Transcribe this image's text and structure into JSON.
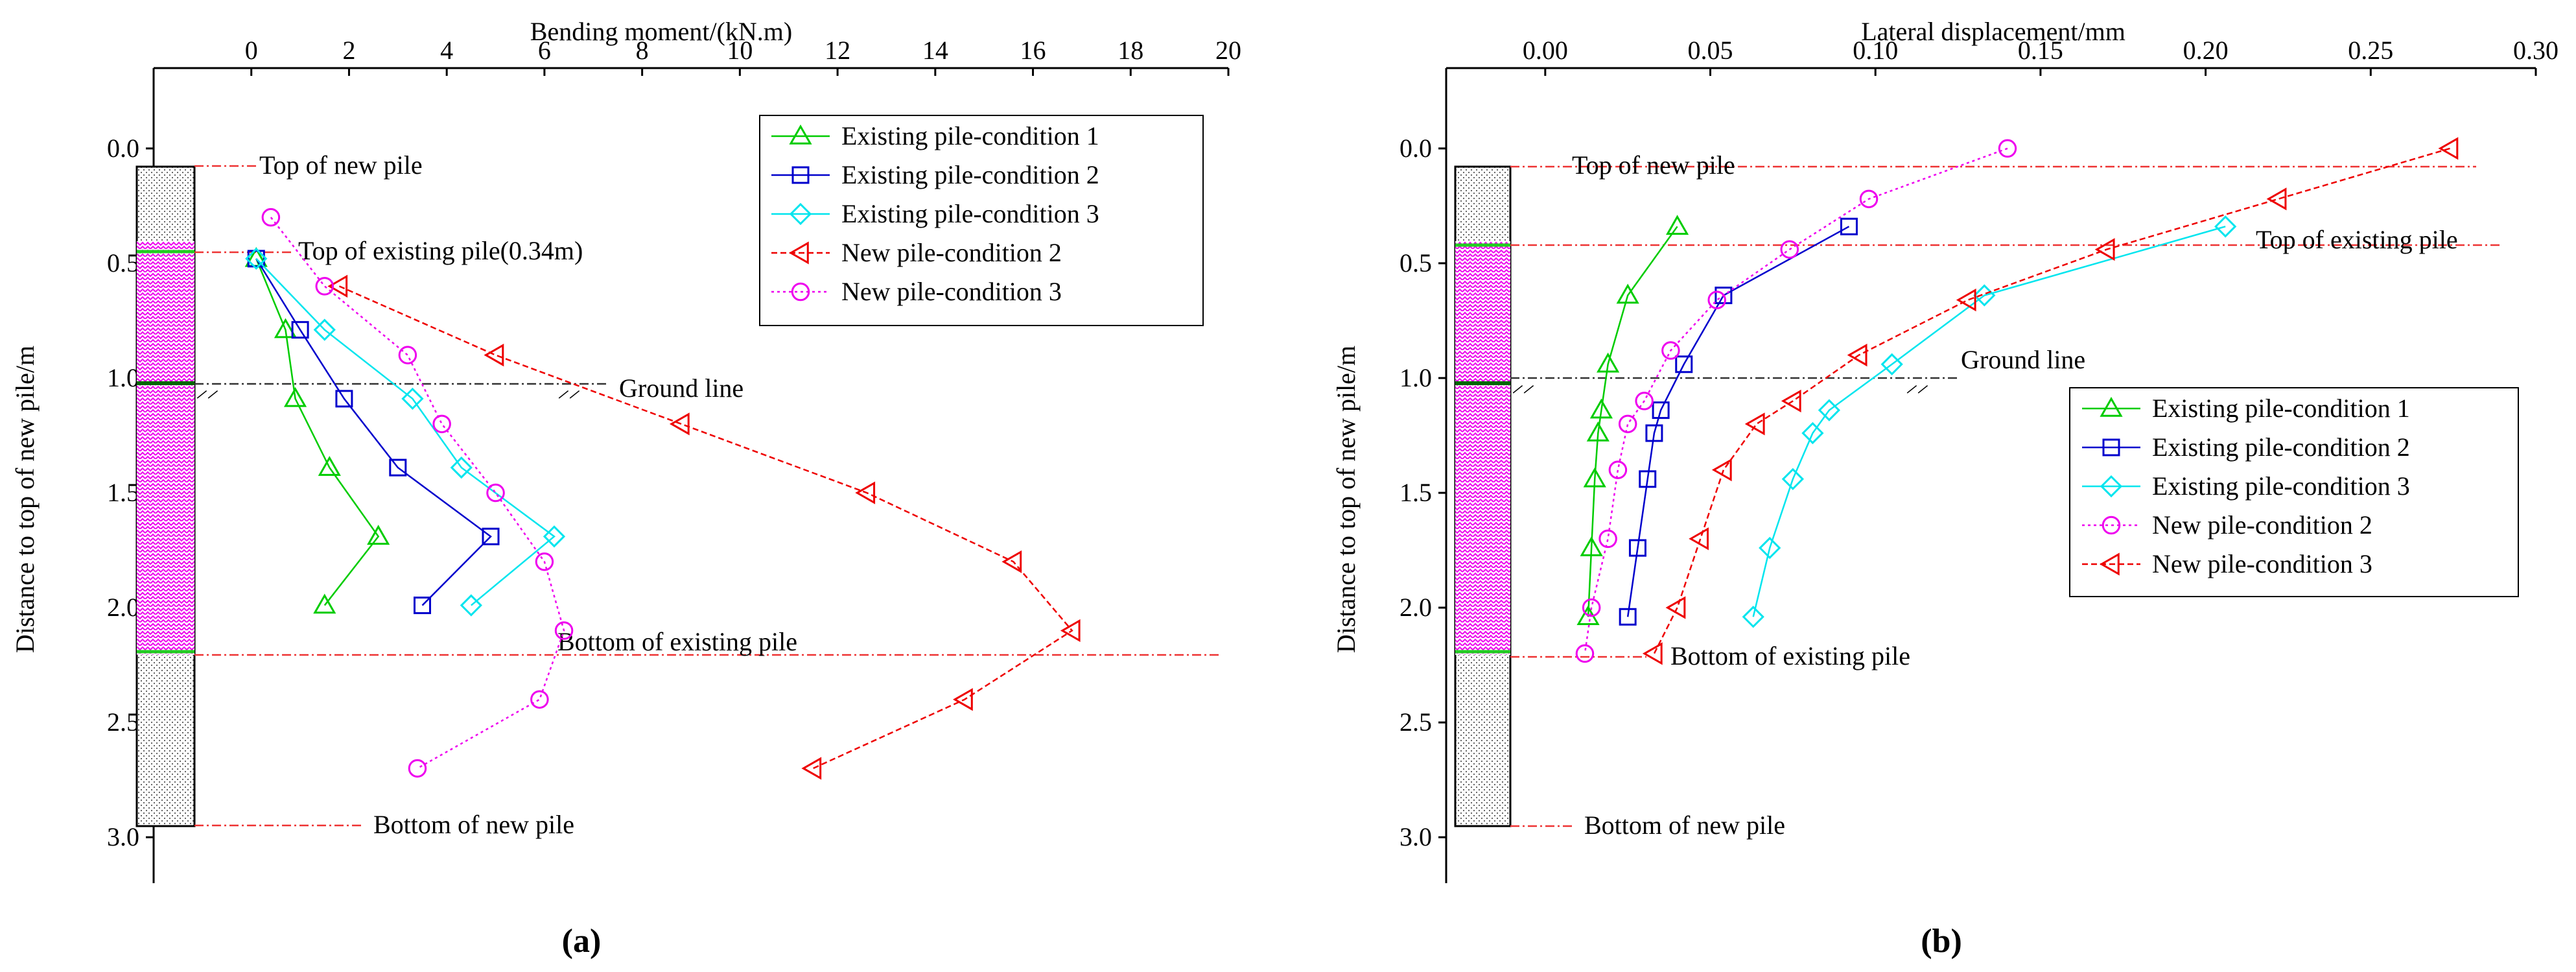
{
  "chart_data": [
    {
      "id": "a",
      "panel_label": "(a)",
      "type": "line",
      "xlabel": "Bending moment/(kN.m)",
      "ylabel": "Distance to top of new pile/m",
      "xlim": [
        -2.0,
        20.0
      ],
      "ylim": [
        3.2,
        -0.35
      ],
      "x_ticks": [
        "0",
        "2",
        "4",
        "6",
        "8",
        "10",
        "12",
        "14",
        "16",
        "18",
        "20"
      ],
      "y_ticks": [
        "0.0",
        "0.5",
        "1.0",
        "1.5",
        "2.0",
        "2.5",
        "3.0"
      ],
      "annotations": {
        "top_new": "Top of new pile",
        "top_existing": "Top of existing pile(0.34m)",
        "ground": "Ground line",
        "bottom_existing": "Bottom of existing pile",
        "bottom_new": "Bottom of new pile"
      },
      "legend": [
        "Existing pile-condition 1",
        "Existing pile-condition 2",
        "Existing pile-condition 3",
        "New pile-condition 2",
        "New pile-condition 3"
      ],
      "series": [
        {
          "name": "Existing pile-condition 1",
          "color": "#00cc00",
          "marker": "triangle-up",
          "dash": "solid",
          "points": [
            [
              0.1,
              0.48
            ],
            [
              0.7,
              0.79
            ],
            [
              0.9,
              1.09
            ],
            [
              1.6,
              1.39
            ],
            [
              2.6,
              1.69
            ],
            [
              1.5,
              1.99
            ]
          ]
        },
        {
          "name": "Existing pile-condition 2",
          "color": "#0000cc",
          "marker": "square",
          "dash": "solid",
          "points": [
            [
              0.1,
              0.48
            ],
            [
              1.0,
              0.79
            ],
            [
              1.9,
              1.09
            ],
            [
              3.0,
              1.39
            ],
            [
              4.9,
              1.69
            ],
            [
              3.5,
              1.99
            ]
          ]
        },
        {
          "name": "Existing pile-condition 3",
          "color": "#00e5ee",
          "marker": "diamond",
          "dash": "solid",
          "points": [
            [
              0.1,
              0.48
            ],
            [
              1.5,
              0.79
            ],
            [
              3.3,
              1.09
            ],
            [
              4.3,
              1.39
            ],
            [
              6.2,
              1.69
            ],
            [
              4.5,
              1.99
            ]
          ]
        },
        {
          "name": "New pile-condition 2",
          "color": "#ee0000",
          "marker": "triangle-left",
          "dash": "dashed",
          "points": [
            [
              1.8,
              0.6
            ],
            [
              5.0,
              0.9
            ],
            [
              8.8,
              1.2
            ],
            [
              12.6,
              1.5
            ],
            [
              15.6,
              1.8
            ],
            [
              16.8,
              2.1
            ],
            [
              14.6,
              2.4
            ],
            [
              11.5,
              2.7
            ]
          ]
        },
        {
          "name": "New pile-condition 3",
          "color": "#ee00ee",
          "marker": "circle",
          "dash": "dotted",
          "points": [
            [
              0.4,
              0.3
            ],
            [
              1.5,
              0.6
            ],
            [
              3.2,
              0.9
            ],
            [
              3.9,
              1.2
            ],
            [
              5.0,
              1.5
            ],
            [
              6.0,
              1.8
            ],
            [
              6.4,
              2.1
            ],
            [
              5.9,
              2.4
            ],
            [
              3.4,
              2.7
            ]
          ]
        }
      ]
    },
    {
      "id": "b",
      "panel_label": "(b)",
      "type": "line",
      "xlabel": "Lateral displacement/mm",
      "ylabel": "Distance to top of new pile/m",
      "xlim": [
        -0.03,
        0.3
      ],
      "ylim": [
        3.2,
        -0.35
      ],
      "x_ticks": [
        "0.00",
        "0.05",
        "0.10",
        "0.15",
        "0.20",
        "0.25",
        "0.30"
      ],
      "y_ticks": [
        "0.0",
        "0.5",
        "1.0",
        "1.5",
        "2.0",
        "2.5",
        "3.0"
      ],
      "annotations": {
        "top_new": "Top of new pile",
        "top_existing": "Top of existing pile",
        "ground": "Ground line",
        "bottom_existing": "Bottom of existing pile",
        "bottom_new": "Bottom of new pile"
      },
      "legend": [
        "Existing pile-condition 1",
        "Existing pile-condition 2",
        "Existing pile-condition 3",
        "New pile-condition 2",
        "New pile-condition 3"
      ],
      "series": [
        {
          "name": "Existing pile-condition 1",
          "color": "#00cc00",
          "marker": "triangle-up",
          "dash": "solid",
          "points": [
            [
              0.04,
              0.34
            ],
            [
              0.025,
              0.64
            ],
            [
              0.019,
              0.94
            ],
            [
              0.017,
              1.14
            ],
            [
              0.016,
              1.24
            ],
            [
              0.015,
              1.44
            ],
            [
              0.014,
              1.74
            ],
            [
              0.013,
              2.04
            ]
          ]
        },
        {
          "name": "Existing pile-condition 2",
          "color": "#0000cc",
          "marker": "square",
          "dash": "solid",
          "points": [
            [
              0.092,
              0.34
            ],
            [
              0.054,
              0.64
            ],
            [
              0.042,
              0.94
            ],
            [
              0.035,
              1.14
            ],
            [
              0.033,
              1.24
            ],
            [
              0.031,
              1.44
            ],
            [
              0.028,
              1.74
            ],
            [
              0.025,
              2.04
            ]
          ]
        },
        {
          "name": "Existing pile-condition 3",
          "color": "#00e5ee",
          "marker": "diamond",
          "dash": "solid",
          "points": [
            [
              0.206,
              0.34
            ],
            [
              0.133,
              0.64
            ],
            [
              0.105,
              0.94
            ],
            [
              0.086,
              1.14
            ],
            [
              0.081,
              1.24
            ],
            [
              0.075,
              1.44
            ],
            [
              0.068,
              1.74
            ],
            [
              0.063,
              2.04
            ]
          ]
        },
        {
          "name": "New pile-condition 2",
          "color": "#ee00ee",
          "marker": "circle",
          "dash": "dotted",
          "points": [
            [
              0.14,
              0.0
            ],
            [
              0.098,
              0.22
            ],
            [
              0.074,
              0.44
            ],
            [
              0.052,
              0.66
            ],
            [
              0.038,
              0.88
            ],
            [
              0.03,
              1.1
            ],
            [
              0.025,
              1.2
            ],
            [
              0.022,
              1.4
            ],
            [
              0.019,
              1.7
            ],
            [
              0.014,
              2.0
            ],
            [
              0.012,
              2.2
            ]
          ]
        },
        {
          "name": "New pile-condition 3",
          "color": "#ee0000",
          "marker": "triangle-left",
          "dash": "dashed",
          "points": [
            [
              0.274,
              0.0
            ],
            [
              0.222,
              0.22
            ],
            [
              0.17,
              0.44
            ],
            [
              0.128,
              0.66
            ],
            [
              0.095,
              0.9
            ],
            [
              0.075,
              1.1
            ],
            [
              0.064,
              1.2
            ],
            [
              0.054,
              1.4
            ],
            [
              0.047,
              1.7
            ],
            [
              0.04,
              2.0
            ],
            [
              0.033,
              2.2
            ]
          ]
        }
      ]
    }
  ]
}
